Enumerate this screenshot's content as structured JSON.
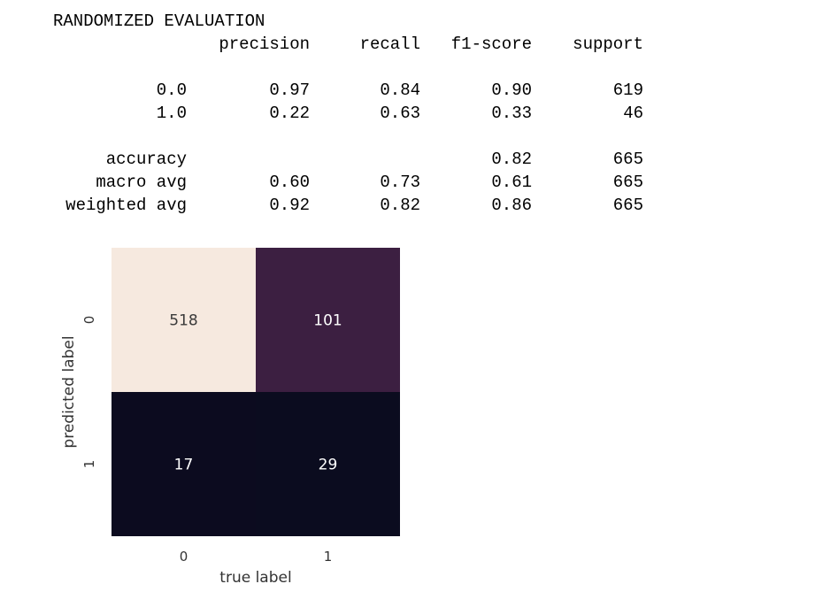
{
  "report": {
    "title": "RANDOMIZED EVALUATION",
    "headers": [
      "precision",
      "recall",
      "f1-score",
      "support"
    ],
    "rows": [
      {
        "label": "0.0",
        "precision": "0.97",
        "recall": "0.84",
        "f1": "0.90",
        "support": "619"
      },
      {
        "label": "1.0",
        "precision": "0.22",
        "recall": "0.63",
        "f1": "0.33",
        "support": "46"
      },
      {
        "label": "accuracy",
        "precision": "",
        "recall": "",
        "f1": "0.82",
        "support": "665"
      },
      {
        "label": "macro avg",
        "precision": "0.60",
        "recall": "0.73",
        "f1": "0.61",
        "support": "665"
      },
      {
        "label": "weighted avg",
        "precision": "0.92",
        "recall": "0.82",
        "f1": "0.86",
        "support": "665"
      }
    ]
  },
  "chart_data": {
    "type": "heatmap",
    "x_categories": [
      "0",
      "1"
    ],
    "y_categories": [
      "0",
      "1"
    ],
    "values": [
      [
        518,
        101
      ],
      [
        17,
        29
      ]
    ],
    "cell_colors": [
      [
        "#f6e9df",
        "#3c1f41"
      ],
      [
        "#0c0b1f",
        "#0b0c1f"
      ]
    ],
    "text_colors": [
      [
        "#3a3a3a",
        "#ffffff"
      ],
      [
        "#ffffff",
        "#ffffff"
      ]
    ],
    "xlabel": "true label",
    "ylabel": "predicted label",
    "colorbar": false
  }
}
